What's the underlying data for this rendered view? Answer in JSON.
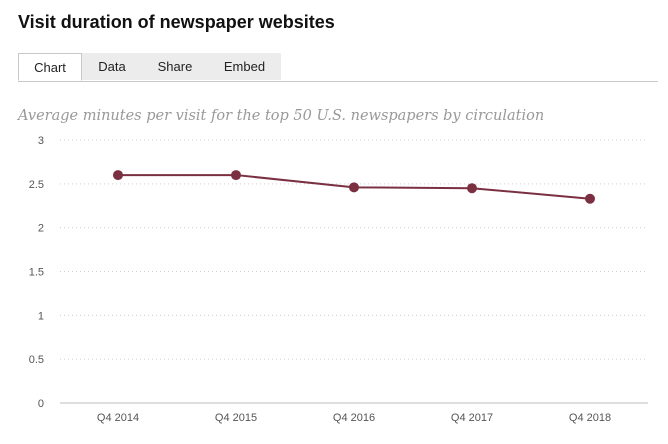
{
  "header": {
    "title": "Visit duration of newspaper websites"
  },
  "tabs": [
    {
      "label": "Chart",
      "active": true
    },
    {
      "label": "Data",
      "active": false
    },
    {
      "label": "Share",
      "active": false
    },
    {
      "label": "Embed",
      "active": false
    }
  ],
  "colors": {
    "series": "#7a3040",
    "grid": "#cfcfcf",
    "axis": "#bdbdbd"
  },
  "chart_data": {
    "type": "line",
    "subtitle": "Average minutes per visit for the top 50 U.S. newspapers by circulation",
    "categories": [
      "Q4 2014",
      "Q4 2015",
      "Q4 2016",
      "Q4 2017",
      "Q4 2018"
    ],
    "series": [
      {
        "values": [
          2.6,
          2.6,
          2.46,
          2.45,
          2.33
        ]
      }
    ],
    "yticks": [
      "0",
      "0.5",
      "1",
      "1.5",
      "2",
      "2.5",
      "3"
    ],
    "ylim": [
      0,
      3
    ],
    "grid": true
  }
}
